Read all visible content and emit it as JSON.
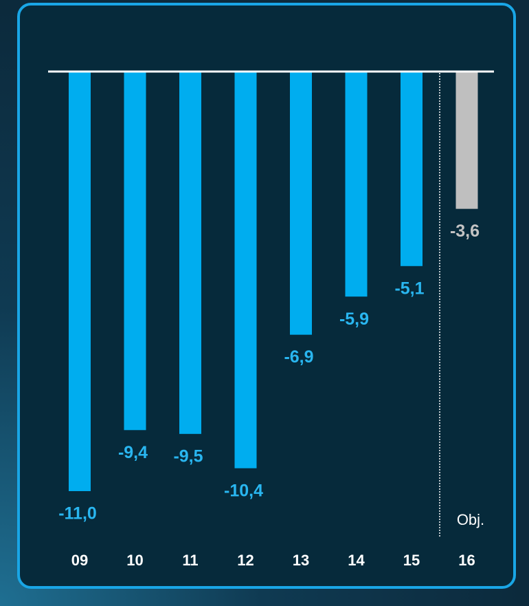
{
  "chart_data": {
    "type": "bar",
    "categories": [
      "09",
      "10",
      "11",
      "12",
      "13",
      "14",
      "15",
      "16"
    ],
    "values": [
      -11.0,
      -9.4,
      -9.5,
      -10.4,
      -6.9,
      -5.9,
      -5.1,
      -3.6
    ],
    "value_labels": [
      "-11,0",
      "-9,4",
      "-9,5",
      "-10,4",
      "-6,9",
      "-5,9",
      "-5,1",
      "-3,6"
    ],
    "colors": [
      "#00adef",
      "#00adef",
      "#00adef",
      "#00adef",
      "#00adef",
      "#00adef",
      "#00adef",
      "#bfbfbf"
    ],
    "label_colors": [
      "#29b6f0",
      "#29b6f0",
      "#29b6f0",
      "#29b6f0",
      "#29b6f0",
      "#29b6f0",
      "#29b6f0",
      "#c4c4c4"
    ],
    "annotation": "Obj.",
    "ylim": [
      -11,
      0
    ]
  }
}
